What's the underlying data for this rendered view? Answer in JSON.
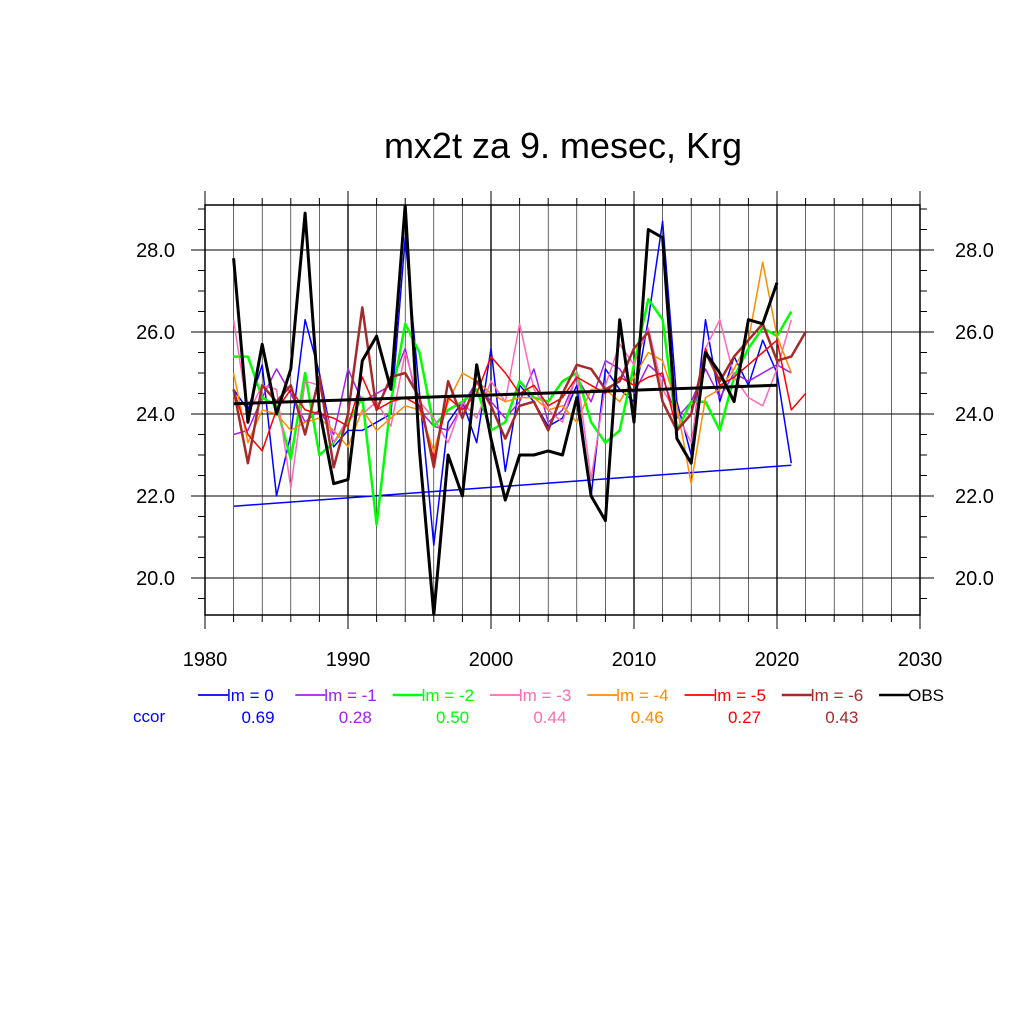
{
  "chart_data": {
    "type": "line",
    "title": "mx2t za 9. mesec, Krg",
    "xlabel": "",
    "ylabel": "",
    "xlim": [
      1980,
      2030
    ],
    "ylim": [
      19.2,
      29.1
    ],
    "x_ticks": [
      "1980",
      "1990",
      "2000",
      "2010",
      "2020",
      "2030"
    ],
    "y_ticks": [
      "20.0",
      "22.0",
      "24.0",
      "26.0",
      "28.0"
    ],
    "grid": true,
    "legend_position": "bottom",
    "ccor_label": "ccor",
    "series": [
      {
        "name": "lm = 0",
        "color": "#0000ff",
        "ccor": "0.69",
        "width": 1.5,
        "x": [
          1982,
          1983,
          1984,
          1985,
          1986,
          1987,
          1988,
          1989,
          1990,
          1991,
          1992,
          1993,
          1994,
          1995,
          1996,
          1997,
          1998,
          1999,
          2000,
          2001,
          2002,
          2003,
          2004,
          2005,
          2006,
          2007,
          2008,
          2009,
          2010,
          2011,
          2012,
          2013,
          2014,
          2015,
          2016,
          2017,
          2018,
          2019,
          2020,
          2021
        ],
        "y": [
          24.6,
          24.1,
          25.2,
          22.0,
          23.5,
          26.3,
          25.0,
          23.2,
          23.6,
          23.6,
          23.8,
          24.0,
          28.3,
          24.5,
          20.8,
          23.8,
          24.3,
          23.3,
          25.6,
          22.6,
          24.7,
          24.3,
          23.7,
          23.9,
          24.7,
          22.0,
          25.1,
          24.6,
          24.3,
          26.3,
          28.7,
          24.3,
          23.0,
          26.3,
          24.3,
          25.4,
          24.7,
          25.8,
          25.0,
          22.8
        ],
        "trend": [
          [
            1982,
            21.75
          ],
          [
            2021,
            22.75
          ]
        ]
      },
      {
        "name": "lm = -1",
        "color": "#a020f0",
        "ccor": "0.28",
        "width": 1.5,
        "x": [
          1982,
          1983,
          1984,
          1985,
          1986,
          1987,
          1988,
          1989,
          1990,
          1991,
          1992,
          1993,
          1994,
          1995,
          1996,
          1997,
          1998,
          1999,
          2000,
          2001,
          2002,
          2003,
          2004,
          2005,
          2006,
          2007,
          2008,
          2009,
          2010,
          2011,
          2012,
          2013,
          2014,
          2015,
          2016,
          2017,
          2018,
          2019,
          2020,
          2021
        ],
        "y": [
          23.5,
          23.6,
          24.4,
          25.1,
          24.5,
          23.8,
          24.1,
          23.5,
          25.1,
          24.3,
          24.5,
          24.7,
          25.6,
          24.1,
          23.7,
          23.6,
          24.2,
          24.8,
          24.3,
          23.9,
          24.3,
          25.1,
          23.8,
          24.1,
          24.9,
          24.3,
          25.3,
          25.1,
          24.5,
          25.2,
          24.9,
          23.9,
          24.3,
          25.1,
          24.4,
          25.0,
          24.8,
          25.0,
          25.2,
          25.0
        ]
      },
      {
        "name": "lm = -2",
        "color": "#00ff00",
        "ccor": "0.50",
        "width": 2.5,
        "x": [
          1982,
          1983,
          1984,
          1985,
          1986,
          1987,
          1988,
          1989,
          1990,
          1991,
          1992,
          1993,
          1994,
          1995,
          1996,
          1997,
          1998,
          1999,
          2000,
          2001,
          2002,
          2003,
          2004,
          2005,
          2006,
          2007,
          2008,
          2009,
          2010,
          2011,
          2012,
          2013,
          2014,
          2015,
          2016,
          2017,
          2018,
          2019,
          2020,
          2021
        ],
        "y": [
          25.4,
          25.4,
          24.4,
          24.2,
          22.9,
          25.0,
          23.0,
          23.3,
          23.8,
          24.4,
          21.3,
          24.3,
          26.2,
          25.5,
          23.7,
          24.1,
          24.3,
          24.6,
          23.6,
          23.8,
          24.8,
          24.4,
          24.3,
          24.8,
          25.0,
          23.8,
          23.3,
          23.6,
          25.2,
          26.8,
          26.3,
          23.6,
          24.3,
          24.3,
          23.6,
          24.9,
          25.6,
          26.1,
          25.9,
          26.5
        ]
      },
      {
        "name": "lm = -3",
        "color": "#ff69b4",
        "ccor": "0.44",
        "width": 1.5,
        "x": [
          1982,
          1983,
          1984,
          1985,
          1986,
          1987,
          1988,
          1989,
          1990,
          1991,
          1992,
          1993,
          1994,
          1995,
          1996,
          1997,
          1998,
          1999,
          2000,
          2001,
          2002,
          2003,
          2004,
          2005,
          2006,
          2007,
          2008,
          2009,
          2010,
          2011,
          2012,
          2013,
          2014,
          2015,
          2016,
          2017,
          2018,
          2019,
          2020,
          2021
        ],
        "y": [
          26.3,
          24.0,
          24.7,
          24.6,
          22.2,
          24.8,
          24.7,
          23.3,
          23.9,
          24.0,
          24.3,
          23.7,
          25.5,
          24.3,
          23.9,
          23.3,
          24.3,
          23.9,
          24.8,
          24.3,
          26.2,
          24.6,
          24.1,
          23.8,
          25.0,
          22.4,
          24.7,
          25.7,
          25.2,
          26.1,
          24.6,
          24.0,
          23.3,
          25.6,
          26.3,
          24.9,
          24.4,
          24.2,
          25.1,
          26.3
        ]
      },
      {
        "name": "lm = -4",
        "color": "#ff8c00",
        "ccor": "0.46",
        "width": 1.5,
        "x": [
          1982,
          1983,
          1984,
          1985,
          1986,
          1987,
          1988,
          1989,
          1990,
          1991,
          1992,
          1993,
          1994,
          1995,
          1996,
          1997,
          1998,
          1999,
          2000,
          2001,
          2002,
          2003,
          2004,
          2005,
          2006,
          2007,
          2008,
          2009,
          2010,
          2011,
          2012,
          2013,
          2014,
          2015,
          2016,
          2017,
          2018,
          2019,
          2020,
          2021
        ],
        "y": [
          25.0,
          23.3,
          24.1,
          24.0,
          23.6,
          23.8,
          23.9,
          23.6,
          23.2,
          24.1,
          23.6,
          23.9,
          24.2,
          24.1,
          23.1,
          24.3,
          25.0,
          24.8,
          24.5,
          24.3,
          24.4,
          24.4,
          24.1,
          24.2,
          23.8,
          24.6,
          24.6,
          24.3,
          24.9,
          25.5,
          25.3,
          24.2,
          22.3,
          24.4,
          24.6,
          25.1,
          25.8,
          27.7,
          25.9,
          25.0
        ]
      },
      {
        "name": "lm = -5",
        "color": "#ff0000",
        "ccor": "0.27",
        "width": 1.5,
        "x": [
          1982,
          1983,
          1984,
          1985,
          1986,
          1987,
          1988,
          1989,
          1990,
          1991,
          1992,
          1993,
          1994,
          1995,
          1996,
          1997,
          1998,
          1999,
          2000,
          2001,
          2002,
          2003,
          2004,
          2005,
          2006,
          2007,
          2008,
          2009,
          2010,
          2011,
          2012,
          2013,
          2014,
          2015,
          2016,
          2017,
          2018,
          2019,
          2020,
          2021,
          2022
        ],
        "y": [
          24.6,
          23.5,
          23.1,
          24.1,
          24.6,
          24.1,
          24.0,
          23.9,
          23.7,
          24.9,
          24.1,
          24.3,
          24.4,
          24.2,
          22.9,
          24.4,
          24.1,
          24.5,
          25.4,
          25.0,
          24.5,
          24.7,
          24.2,
          24.4,
          24.9,
          24.7,
          24.5,
          24.9,
          24.7,
          24.9,
          25.0,
          23.6,
          24.0,
          25.6,
          24.7,
          24.9,
          25.2,
          25.5,
          25.8,
          24.1,
          24.5
        ]
      },
      {
        "name": "lm = -6",
        "color": "#a52a2a",
        "ccor": "0.43",
        "width": 2.5,
        "x": [
          1982,
          1983,
          1984,
          1985,
          1986,
          1987,
          1988,
          1989,
          1990,
          1991,
          1992,
          1993,
          1994,
          1995,
          1996,
          1997,
          1998,
          1999,
          2000,
          2001,
          2002,
          2003,
          2004,
          2005,
          2006,
          2007,
          2008,
          2009,
          2010,
          2011,
          2012,
          2013,
          2014,
          2015,
          2016,
          2017,
          2018,
          2019,
          2020,
          2021,
          2022
        ],
        "y": [
          24.6,
          22.8,
          24.7,
          24.3,
          24.7,
          23.5,
          24.9,
          22.7,
          24.0,
          26.6,
          24.1,
          24.9,
          25.0,
          24.4,
          22.7,
          24.8,
          23.9,
          24.8,
          24.2,
          23.4,
          24.2,
          24.3,
          23.6,
          24.5,
          25.2,
          25.1,
          24.6,
          24.8,
          25.6,
          26.0,
          24.3,
          23.6,
          24.0,
          25.5,
          24.8,
          25.4,
          25.8,
          26.2,
          25.3,
          25.4,
          26.0
        ]
      },
      {
        "name": "OBS",
        "color": "#000000",
        "ccor": "",
        "width": 3,
        "x": [
          1982,
          1983,
          1984,
          1985,
          1986,
          1987,
          1988,
          1989,
          1990,
          1991,
          1992,
          1993,
          1994,
          1995,
          1996,
          1997,
          1998,
          1999,
          2000,
          2001,
          2002,
          2003,
          2004,
          2005,
          2006,
          2007,
          2008,
          2009,
          2010,
          2011,
          2012,
          2013,
          2014,
          2015,
          2016,
          2017,
          2018,
          2019,
          2020
        ],
        "y": [
          27.8,
          23.8,
          25.7,
          24.0,
          25.1,
          28.9,
          24.1,
          22.3,
          22.4,
          25.3,
          25.9,
          24.6,
          29.1,
          23.1,
          19.1,
          23.0,
          22.0,
          25.2,
          23.4,
          21.9,
          23.0,
          23.0,
          23.1,
          23.0,
          24.4,
          22.0,
          21.4,
          26.3,
          23.8,
          28.5,
          28.3,
          23.4,
          22.8,
          25.5,
          25.0,
          24.3,
          26.3,
          26.2,
          27.2
        ],
        "trend": [
          [
            1982,
            24.25
          ],
          [
            2020,
            24.7
          ]
        ]
      }
    ]
  }
}
